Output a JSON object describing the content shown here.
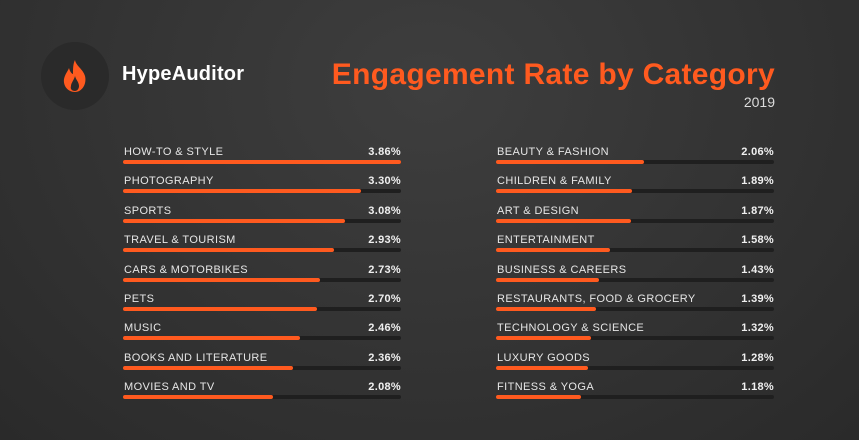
{
  "brand": {
    "name": "HypeAuditor",
    "icon": "flame-icon",
    "accent": "#ff5a1f"
  },
  "header": {
    "title": "Engagement Rate by Category",
    "year": "2019"
  },
  "chart_data": {
    "type": "bar",
    "title": "Engagement Rate by Category",
    "subtitle": "2019",
    "orientation": "horizontal",
    "max": 3.86,
    "series_color": "#ff5a1f",
    "columns": [
      [
        {
          "category": "HOW-TO & STYLE",
          "value": 3.86,
          "label": "3.86%"
        },
        {
          "category": "PHOTOGRAPHY",
          "value": 3.3,
          "label": "3.30%"
        },
        {
          "category": "SPORTS",
          "value": 3.08,
          "label": "3.08%"
        },
        {
          "category": "TRAVEL & TOURISM",
          "value": 2.93,
          "label": "2.93%"
        },
        {
          "category": "CARS & MOTORBIKES",
          "value": 2.73,
          "label": "2.73%"
        },
        {
          "category": "PETS",
          "value": 2.7,
          "label": "2.70%"
        },
        {
          "category": "MUSIC",
          "value": 2.46,
          "label": "2.46%"
        },
        {
          "category": "BOOKS AND LITERATURE",
          "value": 2.36,
          "label": "2.36%"
        },
        {
          "category": "MOVIES AND TV",
          "value": 2.08,
          "label": "2.08%"
        }
      ],
      [
        {
          "category": "BEAUTY & FASHION",
          "value": 2.06,
          "label": "2.06%"
        },
        {
          "category": "CHILDREN & FAMILY",
          "value": 1.89,
          "label": "1.89%"
        },
        {
          "category": "ART & DESIGN",
          "value": 1.87,
          "label": "1.87%"
        },
        {
          "category": "ENTERTAINMENT",
          "value": 1.58,
          "label": "1.58%"
        },
        {
          "category": "BUSINESS & CAREERS",
          "value": 1.43,
          "label": "1.43%"
        },
        {
          "category": "RESTAURANTS, FOOD & GROCERY",
          "value": 1.39,
          "label": "1.39%"
        },
        {
          "category": "TECHNOLOGY & SCIENCE",
          "value": 1.32,
          "label": "1.32%"
        },
        {
          "category": "LUXURY GOODS",
          "value": 1.28,
          "label": "1.28%"
        },
        {
          "category": "FITNESS & YOGA",
          "value": 1.18,
          "label": "1.18%"
        }
      ]
    ]
  }
}
